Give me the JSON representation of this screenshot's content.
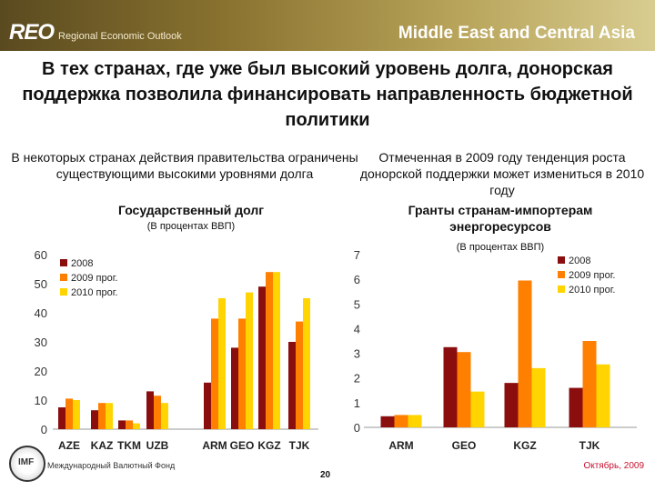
{
  "header": {
    "brand": "REO",
    "brand_subtitle": "Regional Economic Outlook",
    "region": "Middle East and Central Asia"
  },
  "slide_title": "В тех странах, где уже был высокий уровень долга, донорская поддержка позволила финансировать направленность бюджетной политики",
  "left_subtitle": "В некоторых странах действия правительства ограничены существующими высокими уровнями долга",
  "right_subtitle": "Отмеченная в 2009 году тенденция роста донорской поддержки может измениться в 2010 году",
  "colors": {
    "s2008": "#8b0e0e",
    "s2009": "#ff7f00",
    "s2010": "#ffd400"
  },
  "chart_data": [
    {
      "type": "bar",
      "title": "Государственный долг",
      "ylabel": "(В процентах ВВП)",
      "ylim": [
        0,
        60
      ],
      "yticks": [
        "0",
        "10",
        "20",
        "30",
        "40",
        "50",
        "60"
      ],
      "categories": [
        "AZE",
        "KAZ",
        "TKM",
        "UZB",
        "ARM",
        "GEO",
        "KGZ",
        "TJK"
      ],
      "series": [
        {
          "name": "2008",
          "values": [
            7.5,
            6.5,
            3,
            13,
            16,
            28,
            49,
            30
          ]
        },
        {
          "name": "2009 прог.",
          "values": [
            10.5,
            9,
            3,
            11.5,
            38,
            38,
            54,
            37
          ]
        },
        {
          "name": "2010 прог.",
          "values": [
            10,
            9,
            2,
            9,
            45,
            47,
            54,
            45
          ]
        }
      ]
    },
    {
      "type": "bar",
      "title": "Гранты странам-импортерам энергоресурсов",
      "ylabel": "(В процентах ВВП)",
      "ylim": [
        0,
        7
      ],
      "yticks": [
        "0",
        "1",
        "2",
        "3",
        "4",
        "5",
        "6",
        "7"
      ],
      "categories": [
        "ARM",
        "GEO",
        "KGZ",
        "TJK"
      ],
      "series": [
        {
          "name": "2008",
          "values": [
            0.45,
            3.25,
            1.8,
            1.6
          ]
        },
        {
          "name": "2009 прог.",
          "values": [
            0.5,
            3.05,
            5.95,
            3.5
          ]
        },
        {
          "name": "2010 прог.",
          "values": [
            0.5,
            1.45,
            2.4,
            2.55
          ]
        }
      ]
    }
  ],
  "footer": {
    "org": "Международный Валютный Фонд",
    "page": "20",
    "date": "Октябрь, 2009",
    "logo_text": "IMF"
  }
}
